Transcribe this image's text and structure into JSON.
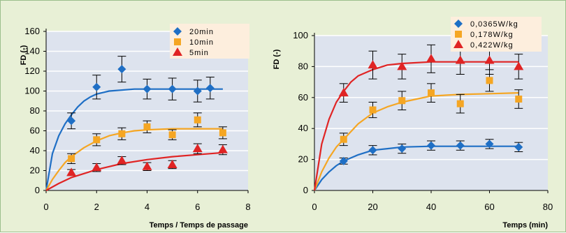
{
  "chart_data": [
    {
      "type": "scatter",
      "title": "",
      "xlabel": "Temps / Temps de passage",
      "ylabel": "FD (-)",
      "xlim": [
        0,
        8
      ],
      "ylim": [
        0,
        160
      ],
      "xticks": [
        0,
        2,
        4,
        6,
        8
      ],
      "yticks": [
        0,
        20,
        40,
        60,
        80,
        100,
        120,
        140,
        160
      ],
      "grid": true,
      "legend_position": "top-right",
      "series": [
        {
          "name": "20min",
          "color": "#1f6fc5",
          "marker": "diamond",
          "x": [
            1,
            2,
            3,
            4,
            5,
            6,
            6.5
          ],
          "y": [
            70,
            104,
            122,
            102,
            102,
            100,
            103
          ],
          "err": [
            8,
            12,
            13,
            10,
            11,
            11,
            11
          ],
          "fit_x": [
            0,
            0.25,
            0.5,
            0.75,
            1,
            1.25,
            1.5,
            1.75,
            2,
            2.5,
            3,
            3.5,
            4,
            5,
            6,
            7
          ],
          "fit_y": [
            0,
            37,
            55,
            67,
            76,
            84,
            90,
            94,
            97,
            100,
            101,
            102,
            102,
            102,
            102,
            102
          ]
        },
        {
          "name": "10min",
          "color": "#f5a623",
          "marker": "square",
          "x": [
            1,
            2,
            3,
            4,
            5,
            6,
            7
          ],
          "y": [
            32,
            51,
            57,
            64,
            56,
            71,
            58
          ],
          "err": [
            5,
            6,
            6,
            6,
            5,
            7,
            6
          ],
          "fit_x": [
            0,
            0.25,
            0.5,
            0.75,
            1,
            1.5,
            2,
            2.5,
            3,
            3.5,
            4,
            5,
            6,
            7
          ],
          "fit_y": [
            0,
            11,
            20,
            28,
            34,
            43,
            50,
            55,
            58,
            60,
            61,
            62,
            62,
            62
          ]
        },
        {
          "name": "5min",
          "color": "#e02424",
          "marker": "triangle",
          "x": [
            1,
            2,
            3,
            4,
            5,
            6,
            7
          ],
          "y": [
            18,
            23,
            30,
            24,
            26,
            42,
            41
          ],
          "err": [
            3,
            4,
            4,
            4,
            4,
            5,
            5
          ],
          "fit_x": [
            0,
            0.5,
            1,
            1.5,
            2,
            2.5,
            3,
            4,
            5,
            6,
            7
          ],
          "fit_y": [
            0,
            7,
            13,
            17,
            21,
            24,
            27,
            31,
            34,
            36,
            38
          ]
        }
      ]
    },
    {
      "type": "scatter",
      "title": "",
      "xlabel": "Temps (min)",
      "ylabel": "FD (-)",
      "xlim": [
        0,
        80
      ],
      "ylim": [
        0,
        100
      ],
      "xticks": [
        0,
        20,
        40,
        60,
        80
      ],
      "yticks": [
        0,
        20,
        40,
        60,
        80,
        100
      ],
      "grid": true,
      "legend_position": "top-right",
      "series": [
        {
          "name": "0,0365W/kg",
          "color": "#1f6fc5",
          "marker": "diamond",
          "x": [
            10,
            20,
            30,
            40,
            50,
            60,
            70
          ],
          "y": [
            19,
            26,
            27,
            29,
            29,
            30,
            28
          ],
          "err": [
            2,
            3,
            3,
            3,
            3,
            3,
            3
          ],
          "fit_x": [
            0,
            2.5,
            5,
            7.5,
            10,
            15,
            20,
            25,
            30,
            40,
            50,
            60,
            70
          ],
          "fit_y": [
            0,
            7,
            12,
            16,
            19,
            23,
            26,
            27,
            28,
            28.5,
            28.5,
            28.5,
            28.5
          ]
        },
        {
          "name": "0,178W/kg",
          "color": "#f5a623",
          "marker": "square",
          "x": [
            10,
            20,
            30,
            40,
            50,
            60,
            70
          ],
          "y": [
            33,
            52,
            58,
            63,
            56,
            71,
            59
          ],
          "err": [
            4,
            5,
            6,
            6,
            6,
            7,
            6
          ],
          "fit_x": [
            0,
            2.5,
            5,
            7.5,
            10,
            15,
            20,
            25,
            30,
            35,
            40,
            50,
            60,
            70
          ],
          "fit_y": [
            0,
            12,
            21,
            28,
            33,
            43,
            50,
            54,
            57,
            59,
            61,
            62,
            62.5,
            63
          ]
        },
        {
          "name": "0,422W/kg",
          "color": "#e02424",
          "marker": "triangle",
          "x": [
            10,
            20,
            30,
            40,
            50,
            60,
            70
          ],
          "y": [
            63,
            81,
            80,
            85,
            84,
            84,
            80
          ],
          "err": [
            6,
            9,
            8,
            9,
            9,
            9,
            8
          ],
          "fit_x": [
            0,
            2.5,
            5,
            7.5,
            10,
            12.5,
            15,
            20,
            25,
            30,
            40,
            50,
            60,
            70
          ],
          "fit_y": [
            0,
            30,
            46,
            57,
            64,
            70,
            74,
            78,
            81,
            82,
            83,
            83,
            83,
            83
          ]
        }
      ]
    }
  ]
}
